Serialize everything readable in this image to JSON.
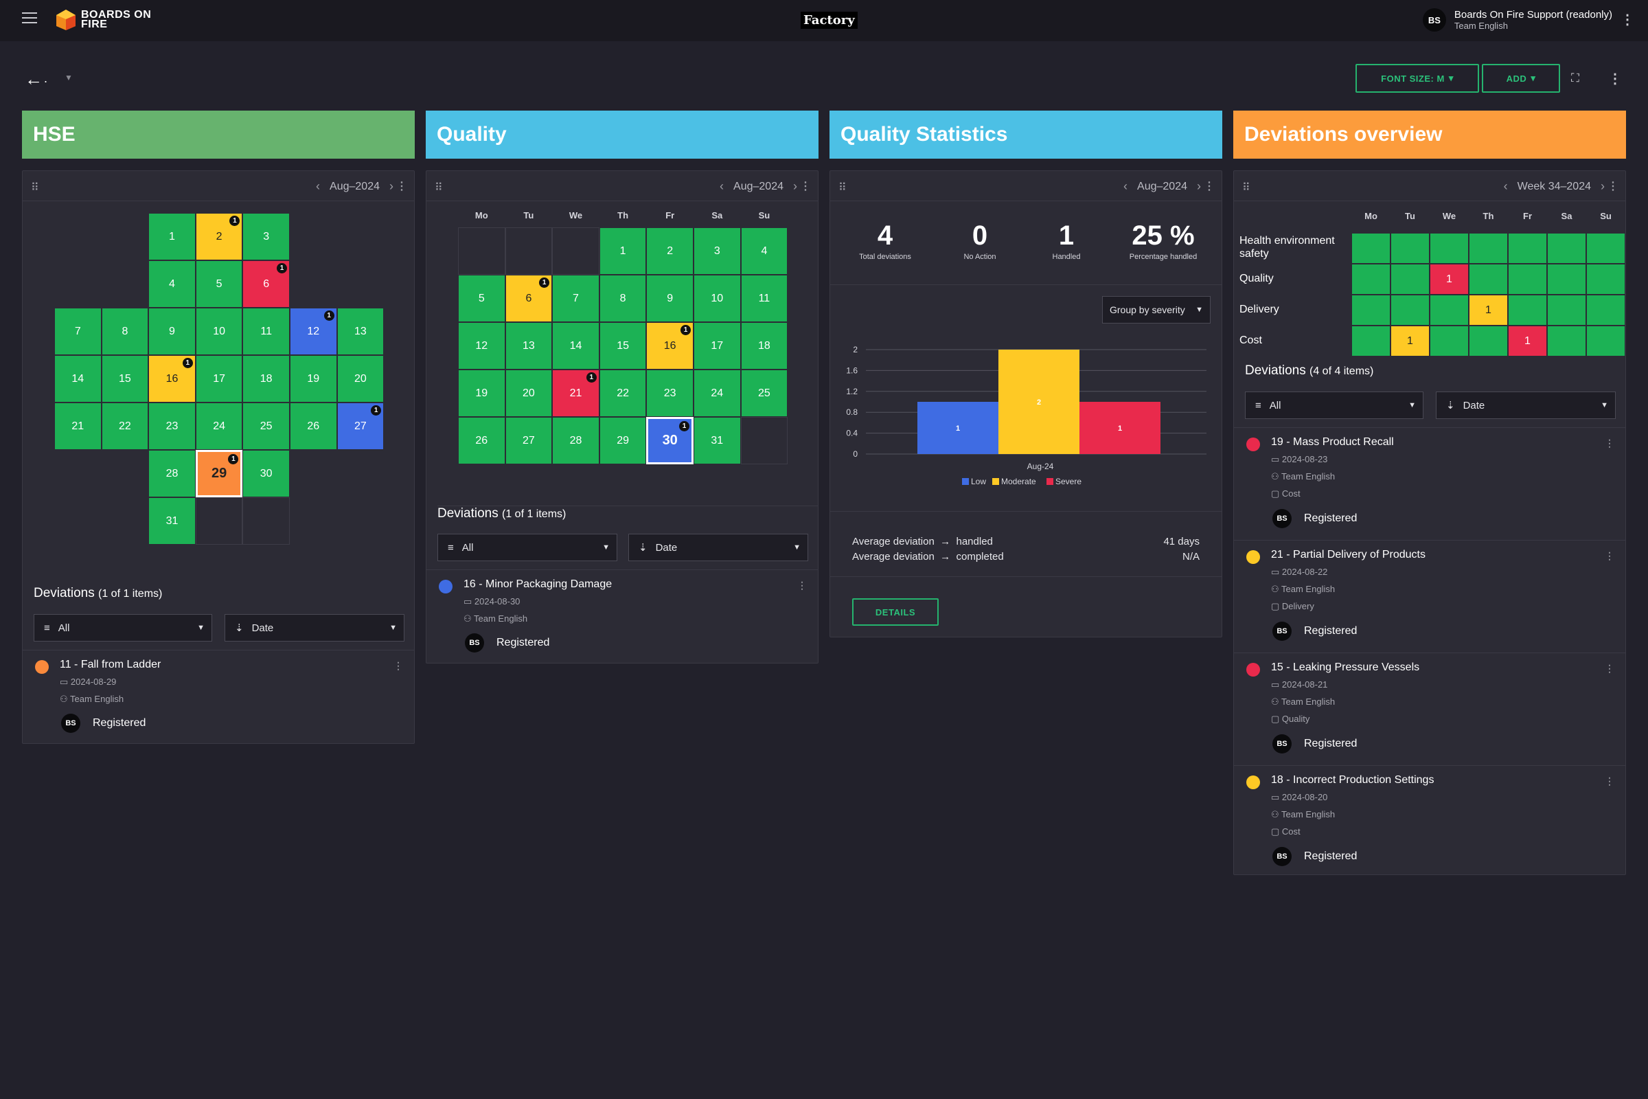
{
  "header": {
    "logo_text": "BOARDS ON FIRE",
    "app_name": "Factory",
    "user_initials": "BS",
    "user_name": "Boards On Fire Support (readonly)",
    "user_team": "Team English"
  },
  "toolbar": {
    "dashboard_title": ".",
    "font_size_label": "FONT SIZE: M",
    "add_label": "ADD"
  },
  "columns": [
    {
      "title": "HSE",
      "color": "#67b36e"
    },
    {
      "title": "Quality",
      "color": "#4cc0e5"
    },
    {
      "title": "Quality Statistics",
      "color": "#4cc0e5"
    },
    {
      "title": "Deviations overview",
      "color": "#fc9c3c"
    }
  ],
  "hse": {
    "period": "Aug–2024",
    "deviations_title": "Deviations",
    "deviations_count": "(1 of 1 items)",
    "filter_label": "All",
    "sort_label": "Date",
    "deviation": {
      "title": "11 - Fall from Ladder",
      "date": "2024-08-29",
      "team": "Team English",
      "status": "Registered",
      "initials": "BS",
      "color": "#fa8a3c"
    }
  },
  "quality": {
    "period": "Aug–2024",
    "day_headers": [
      "Mo",
      "Tu",
      "We",
      "Th",
      "Fr",
      "Sa",
      "Su"
    ],
    "deviations_title": "Deviations",
    "deviations_count": "(1 of 1 items)",
    "filter_label": "All",
    "sort_label": "Date",
    "deviation": {
      "title": "16 - Minor Packaging Damage",
      "date": "2024-08-30",
      "team": "Team English",
      "status": "Registered",
      "initials": "BS",
      "color": "#3f6ce3"
    }
  },
  "stats": {
    "period": "Aug–2024",
    "kpis": [
      {
        "value": "4",
        "label": "Total deviations"
      },
      {
        "value": "0",
        "label": "No Action"
      },
      {
        "value": "1",
        "label": "Handled"
      },
      {
        "value": "25 %",
        "label": "Percentage handled"
      }
    ],
    "group_label": "Group by severity",
    "avg_rows": [
      {
        "label": "Average deviation",
        "target": "handled",
        "value": "41 days"
      },
      {
        "label": "Average deviation",
        "target": "completed",
        "value": "N/A"
      }
    ],
    "details_label": "DETAILS"
  },
  "chart_data": {
    "type": "bar",
    "categories": [
      "Aug-24"
    ],
    "series": [
      {
        "name": "Low",
        "values": [
          1
        ],
        "color": "#3f6ce3"
      },
      {
        "name": "Moderate",
        "values": [
          2
        ],
        "color": "#fec925"
      },
      {
        "name": "Severe",
        "values": [
          1
        ],
        "color": "#e92a4c"
      }
    ],
    "ylim": [
      0,
      2
    ],
    "yticks": [
      "0",
      "0.4",
      "0.8",
      "1.2",
      "1.6",
      "2"
    ],
    "xlabel": "",
    "ylabel": "",
    "title": "",
    "legend": "bottom"
  },
  "overview": {
    "period": "Week 34–2024",
    "day_headers": [
      "Mo",
      "Tu",
      "We",
      "Th",
      "Fr",
      "Sa",
      "Su"
    ],
    "rows": [
      {
        "label": "Health environment safety",
        "cells": [
          "",
          "",
          "",
          "",
          "",
          "",
          ""
        ],
        "colors": [
          "g",
          "g",
          "g",
          "g",
          "g",
          "g",
          "g"
        ]
      },
      {
        "label": "Quality",
        "cells": [
          "",
          "",
          "1",
          "",
          "",
          "",
          ""
        ],
        "colors": [
          "g",
          "g",
          "r",
          "g",
          "g",
          "g",
          "g"
        ]
      },
      {
        "label": "Delivery",
        "cells": [
          "",
          "",
          "",
          "1",
          "",
          "",
          ""
        ],
        "colors": [
          "g",
          "g",
          "g",
          "y",
          "g",
          "g",
          "g"
        ]
      },
      {
        "label": "Cost",
        "cells": [
          "",
          "1",
          "",
          "",
          "1",
          "",
          ""
        ],
        "colors": [
          "g",
          "y",
          "g",
          "g",
          "r",
          "g",
          "g"
        ]
      }
    ],
    "deviations_title": "Deviations",
    "deviations_count": "(4 of 4 items)",
    "filter_label": "All",
    "sort_label": "Date",
    "deviations": [
      {
        "title": "19 - Mass Product Recall",
        "date": "2024-08-23",
        "team": "Team English",
        "category": "Cost",
        "status": "Registered",
        "initials": "BS",
        "color": "#e92a4c"
      },
      {
        "title": "21 - Partial Delivery of Products",
        "date": "2024-08-22",
        "team": "Team English",
        "category": "Delivery",
        "status": "Registered",
        "initials": "BS",
        "color": "#fec925"
      },
      {
        "title": "15 - Leaking Pressure Vessels",
        "date": "2024-08-21",
        "team": "Team English",
        "category": "Quality",
        "status": "Registered",
        "initials": "BS",
        "color": "#e92a4c"
      },
      {
        "title": "18 - Incorrect Production Settings",
        "date": "2024-08-20",
        "team": "Team English",
        "category": "Cost",
        "status": "Registered",
        "initials": "BS",
        "color": "#fec925"
      }
    ]
  },
  "hse_calendar": [
    {
      "d": "1",
      "r": 0,
      "c": 2
    },
    {
      "d": "2",
      "r": 0,
      "c": 3,
      "s": "yellow",
      "b": "1"
    },
    {
      "d": "3",
      "r": 0,
      "c": 4
    },
    {
      "d": "4",
      "r": 1,
      "c": 2
    },
    {
      "d": "5",
      "r": 1,
      "c": 3
    },
    {
      "d": "6",
      "r": 1,
      "c": 4,
      "s": "red",
      "b": "1"
    },
    {
      "d": "7",
      "r": 2,
      "c": 0
    },
    {
      "d": "8",
      "r": 2,
      "c": 1
    },
    {
      "d": "9",
      "r": 2,
      "c": 2
    },
    {
      "d": "10",
      "r": 2,
      "c": 3
    },
    {
      "d": "11",
      "r": 2,
      "c": 4
    },
    {
      "d": "12",
      "r": 2,
      "c": 5,
      "s": "blue",
      "b": "1"
    },
    {
      "d": "13",
      "r": 2,
      "c": 6
    },
    {
      "d": "14",
      "r": 3,
      "c": 0
    },
    {
      "d": "15",
      "r": 3,
      "c": 1
    },
    {
      "d": "16",
      "r": 3,
      "c": 2,
      "s": "yellow",
      "b": "1"
    },
    {
      "d": "17",
      "r": 3,
      "c": 3
    },
    {
      "d": "18",
      "r": 3,
      "c": 4
    },
    {
      "d": "19",
      "r": 3,
      "c": 5
    },
    {
      "d": "20",
      "r": 3,
      "c": 6
    },
    {
      "d": "21",
      "r": 4,
      "c": 0
    },
    {
      "d": "22",
      "r": 4,
      "c": 1
    },
    {
      "d": "23",
      "r": 4,
      "c": 2
    },
    {
      "d": "24",
      "r": 4,
      "c": 3
    },
    {
      "d": "25",
      "r": 4,
      "c": 4
    },
    {
      "d": "26",
      "r": 4,
      "c": 5
    },
    {
      "d": "27",
      "r": 4,
      "c": 6,
      "s": "blue",
      "b": "1"
    },
    {
      "d": "28",
      "r": 5,
      "c": 2
    },
    {
      "d": "29",
      "r": 5,
      "c": 3,
      "s": "orange",
      "b": "1"
    },
    {
      "d": "30",
      "r": 5,
      "c": 4
    },
    {
      "d": "31",
      "r": 6,
      "c": 2
    },
    {
      "d": "",
      "r": 6,
      "c": 3,
      "s": "empty"
    },
    {
      "d": "",
      "r": 6,
      "c": 4,
      "s": "empty"
    }
  ],
  "quality_calendar": [
    {
      "d": "",
      "r": 0,
      "c": 0,
      "s": "empty"
    },
    {
      "d": "",
      "r": 0,
      "c": 1,
      "s": "empty"
    },
    {
      "d": "",
      "r": 0,
      "c": 2,
      "s": "empty"
    },
    {
      "d": "1",
      "r": 0,
      "c": 3
    },
    {
      "d": "2",
      "r": 0,
      "c": 4
    },
    {
      "d": "3",
      "r": 0,
      "c": 5
    },
    {
      "d": "4",
      "r": 0,
      "c": 6
    },
    {
      "d": "5",
      "r": 1,
      "c": 0
    },
    {
      "d": "6",
      "r": 1,
      "c": 1,
      "s": "yellow",
      "b": "1"
    },
    {
      "d": "7",
      "r": 1,
      "c": 2
    },
    {
      "d": "8",
      "r": 1,
      "c": 3
    },
    {
      "d": "9",
      "r": 1,
      "c": 4
    },
    {
      "d": "10",
      "r": 1,
      "c": 5
    },
    {
      "d": "11",
      "r": 1,
      "c": 6
    },
    {
      "d": "12",
      "r": 2,
      "c": 0
    },
    {
      "d": "13",
      "r": 2,
      "c": 1
    },
    {
      "d": "14",
      "r": 2,
      "c": 2
    },
    {
      "d": "15",
      "r": 2,
      "c": 3
    },
    {
      "d": "16",
      "r": 2,
      "c": 4,
      "s": "yellow",
      "b": "1"
    },
    {
      "d": "17",
      "r": 2,
      "c": 5
    },
    {
      "d": "18",
      "r": 2,
      "c": 6
    },
    {
      "d": "19",
      "r": 3,
      "c": 0
    },
    {
      "d": "20",
      "r": 3,
      "c": 1
    },
    {
      "d": "21",
      "r": 3,
      "c": 2,
      "s": "red",
      "b": "1"
    },
    {
      "d": "22",
      "r": 3,
      "c": 3
    },
    {
      "d": "23",
      "r": 3,
      "c": 4
    },
    {
      "d": "24",
      "r": 3,
      "c": 5
    },
    {
      "d": "25",
      "r": 3,
      "c": 6
    },
    {
      "d": "26",
      "r": 4,
      "c": 0
    },
    {
      "d": "27",
      "r": 4,
      "c": 1
    },
    {
      "d": "28",
      "r": 4,
      "c": 2
    },
    {
      "d": "29",
      "r": 4,
      "c": 3
    },
    {
      "d": "30",
      "r": 4,
      "c": 4,
      "s": "blue sel",
      "b": "1"
    },
    {
      "d": "31",
      "r": 4,
      "c": 5
    },
    {
      "d": "",
      "r": 4,
      "c": 6,
      "s": "empty"
    }
  ]
}
